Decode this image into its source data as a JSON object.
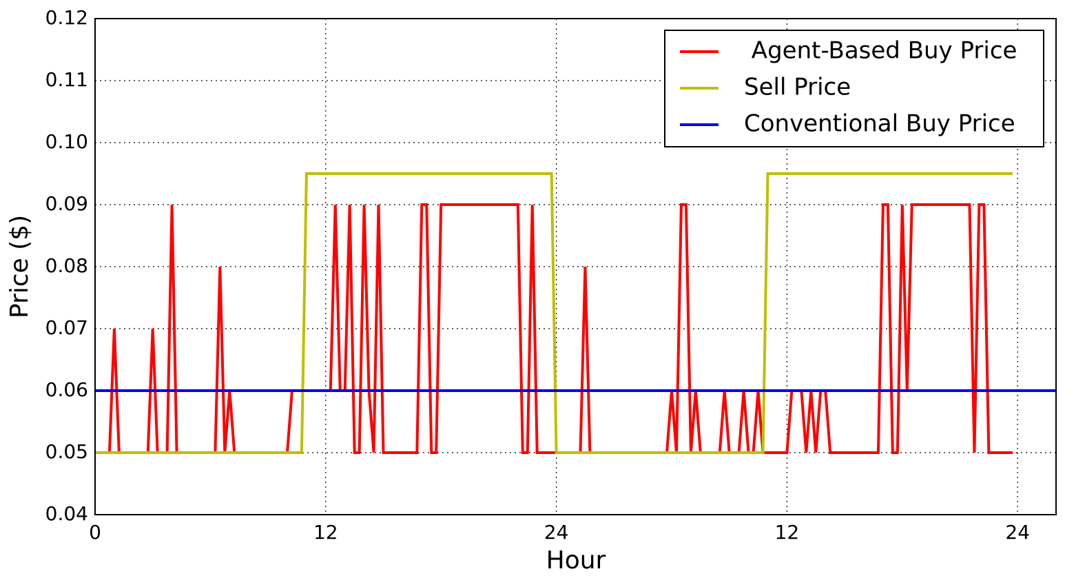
{
  "chart_data": {
    "type": "line",
    "xlabel": "Hour",
    "ylabel": "Price ($)",
    "xlim": [
      0,
      50
    ],
    "ylim": [
      0.04,
      0.12
    ],
    "xticks": [
      0,
      12,
      24,
      {
        "value": 36,
        "label": "12"
      },
      {
        "value": 48,
        "label": "24"
      }
    ],
    "yticks": [
      {
        "value": 0.04,
        "label": "0.04"
      },
      {
        "value": 0.05,
        "label": "0.05"
      },
      {
        "value": 0.06,
        "label": "0.06"
      },
      {
        "value": 0.07,
        "label": "0.07"
      },
      {
        "value": 0.08,
        "label": "0.08"
      },
      {
        "value": 0.09,
        "label": "0.09"
      },
      {
        "value": 0.1,
        "label": "0.10"
      },
      {
        "value": 0.11,
        "label": "0.11"
      },
      {
        "value": 0.12,
        "label": "0.12"
      }
    ],
    "grid": true,
    "legend": "upper right",
    "series": [
      {
        "name": " Agent-Based Buy Price",
        "color": "#ff0000",
        "x": [
          0,
          0.75,
          1.0,
          1.25,
          2.75,
          3.0,
          3.25,
          3.75,
          4.0,
          4.25,
          6.25,
          6.5,
          6.75,
          7.0,
          7.25,
          10.0,
          10.25,
          12.25,
          12.5,
          12.75,
          13.0,
          13.25,
          13.5,
          13.75,
          14.0,
          14.25,
          14.5,
          14.75,
          15.0,
          16.75,
          17.0,
          17.25,
          17.5,
          17.75,
          18.0,
          22.0,
          22.25,
          22.5,
          22.75,
          23.0,
          24.0,
          25.25,
          25.5,
          25.75,
          29.75,
          30.0,
          30.25,
          30.5,
          30.75,
          31.0,
          31.25,
          31.5,
          32.5,
          32.75,
          33.0,
          33.5,
          33.75,
          34.0,
          34.25,
          34.5,
          34.75,
          36.0,
          36.25,
          36.75,
          37.0,
          37.25,
          37.5,
          37.75,
          38.0,
          38.25,
          40.75,
          41.0,
          41.25,
          41.5,
          41.75,
          42.0,
          42.25,
          42.5,
          45.5,
          45.75,
          46.0,
          46.25,
          46.5,
          47.75
        ],
        "values": [
          0.05,
          0.05,
          0.07,
          0.05,
          0.05,
          0.07,
          0.05,
          0.05,
          0.09,
          0.05,
          0.05,
          0.08,
          0.05,
          0.06,
          0.05,
          0.05,
          0.06,
          0.06,
          0.09,
          0.06,
          0.06,
          0.09,
          0.05,
          0.05,
          0.09,
          0.06,
          0.05,
          0.09,
          0.05,
          0.05,
          0.09,
          0.09,
          0.05,
          0.05,
          0.09,
          0.09,
          0.05,
          0.05,
          0.09,
          0.05,
          0.05,
          0.05,
          0.08,
          0.05,
          0.05,
          0.06,
          0.05,
          0.09,
          0.09,
          0.05,
          0.06,
          0.05,
          0.05,
          0.06,
          0.05,
          0.05,
          0.06,
          0.05,
          0.05,
          0.06,
          0.05,
          0.05,
          0.06,
          0.06,
          0.05,
          0.06,
          0.05,
          0.06,
          0.06,
          0.05,
          0.05,
          0.09,
          0.09,
          0.05,
          0.05,
          0.09,
          0.06,
          0.09,
          0.09,
          0.05,
          0.09,
          0.09,
          0.05,
          0.05
        ]
      },
      {
        "name": "Sell Price",
        "color": "#bfbf00",
        "x": [
          0,
          10.75,
          11.0,
          23.75,
          24.0,
          34.75,
          35.0,
          47.75
        ],
        "values": [
          0.05,
          0.05,
          0.095,
          0.095,
          0.05,
          0.05,
          0.095,
          0.095
        ]
      },
      {
        "name": "Conventional Buy Price",
        "color": "#0000ff",
        "x": [
          0,
          50
        ],
        "values": [
          0.06,
          0.06
        ]
      }
    ]
  }
}
